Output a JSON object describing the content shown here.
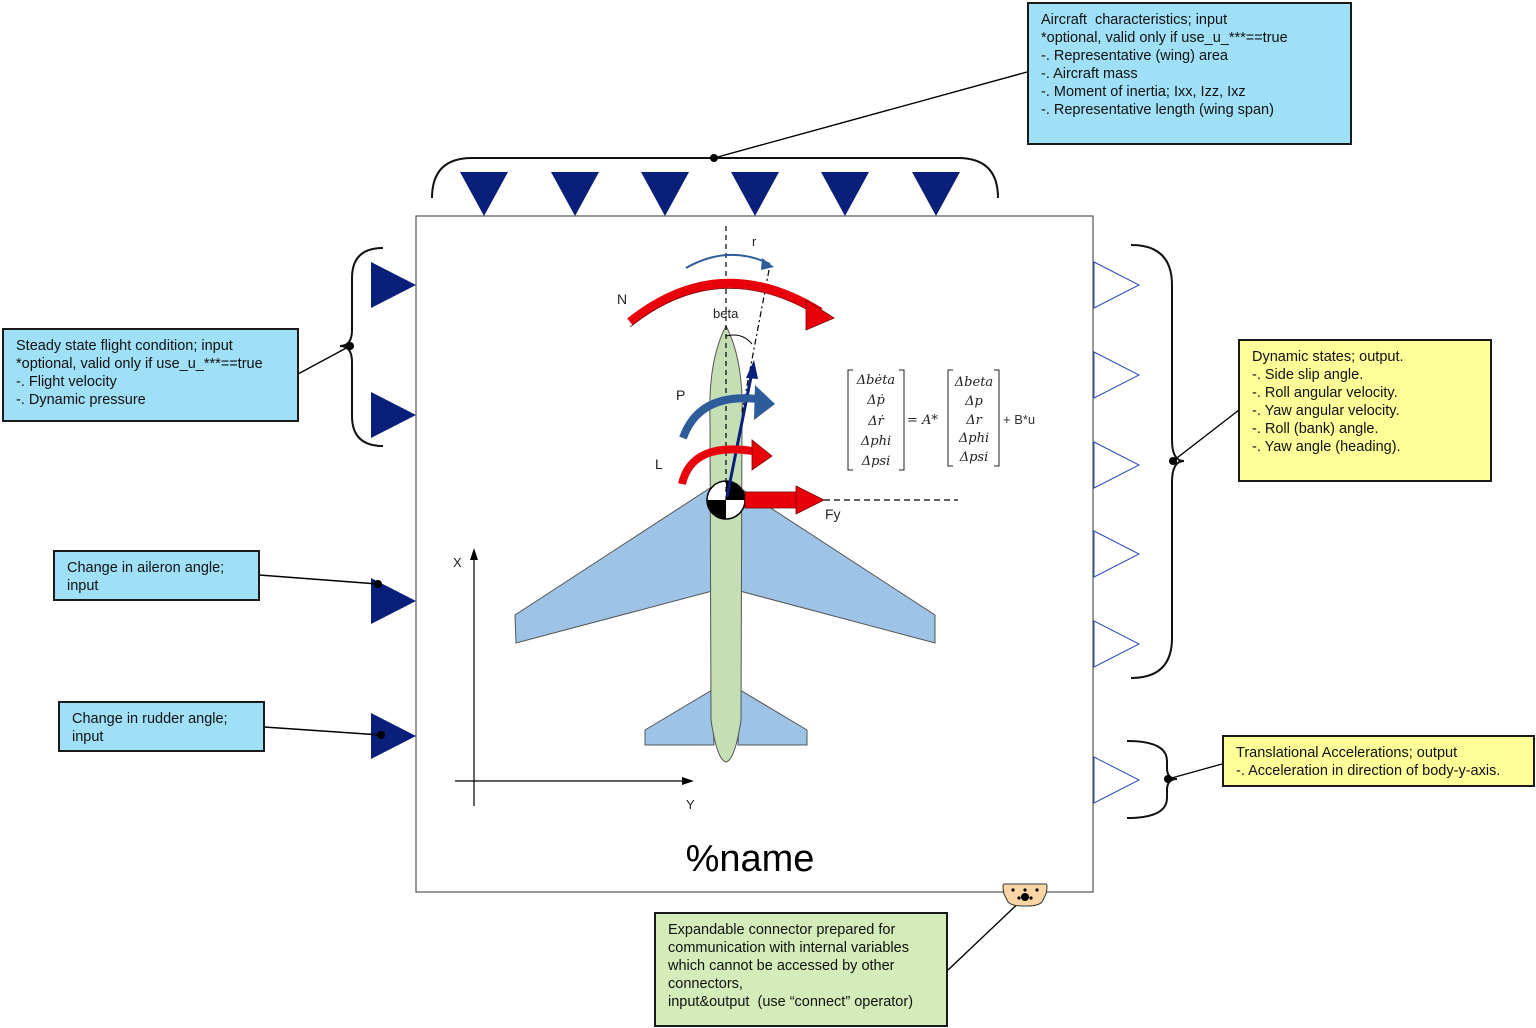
{
  "block": {
    "name": "%name"
  },
  "labels": {
    "r": "r",
    "N": "N",
    "beta": "beta",
    "P": "P",
    "L": "L",
    "Fy": "Fy",
    "X": "X",
    "Y": "Y"
  },
  "equation": {
    "lhs": [
      "Δbėta",
      "Δṗ",
      "Δṙ",
      "Δphi",
      "Δpsi"
    ],
    "eq_sign": "= A*",
    "rhs": [
      "Δbeta",
      "Δp",
      "Δr",
      "Δphi",
      "Δpsi"
    ],
    "tail": "+ B*u"
  },
  "notes": {
    "aircraft_characteristics": [
      "Aircraft  characteristics; input",
      "*optional, valid only if use_u_***==true",
      "-. Representative (wing) area",
      "-. Aircraft mass",
      "-. Moment of inertia; Ixx, Izz, Ixz",
      "-. Representative length (wing span)"
    ],
    "steady_state": [
      "Steady state flight condition; input",
      "*optional, valid only if use_u_***==true",
      "-. Flight velocity",
      "-. Dynamic pressure"
    ],
    "aileron": [
      "Change in aileron angle;",
      "input"
    ],
    "rudder": [
      "Change in rudder angle;",
      "input"
    ],
    "dynamic_states": [
      "Dynamic states; output.",
      "-. Side slip angle.",
      "-. Roll angular velocity.",
      "-. Yaw angular velocity.",
      "-. Roll (bank) angle.",
      "-. Yaw angle (heading)."
    ],
    "translational": [
      "Translational Accelerations; output",
      "-. Acceleration in direction of body-y-axis."
    ],
    "expandable": [
      "Expandable connector prepared for",
      "communication with internal variables",
      "which cannot be accessed by other",
      "connectors,",
      "input&output  (use “connect” operator)"
    ]
  },
  "colors": {
    "input_triangle": "#0a1f7a",
    "force_arrow": "#e8000b",
    "moment_arrow_blue": "#2e5b9a",
    "fuselage": "#c5dfb4",
    "wing": "#9dc3e6",
    "note_blue": "#9fe0f7",
    "note_yellow": "#ffff99",
    "note_green": "#d4ecb9"
  }
}
